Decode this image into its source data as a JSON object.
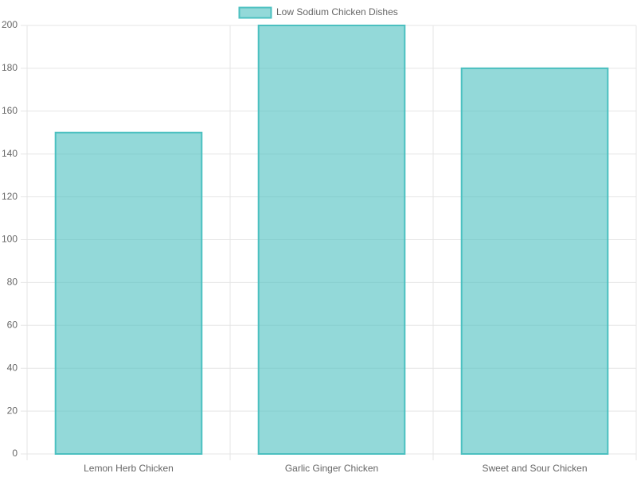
{
  "chart_data": {
    "type": "bar",
    "categories": [
      "Lemon Herb Chicken",
      "Garlic Ginger Chicken",
      "Sweet and Sour Chicken"
    ],
    "series": [
      {
        "name": "Low Sodium Chicken Dishes",
        "color": "#4bc0c0",
        "values": [
          150,
          200,
          180
        ]
      }
    ],
    "ylim": [
      0,
      200
    ],
    "yticks": [
      0,
      20,
      40,
      60,
      80,
      100,
      120,
      140,
      160,
      180,
      200
    ],
    "grid": true,
    "legend": "top"
  }
}
